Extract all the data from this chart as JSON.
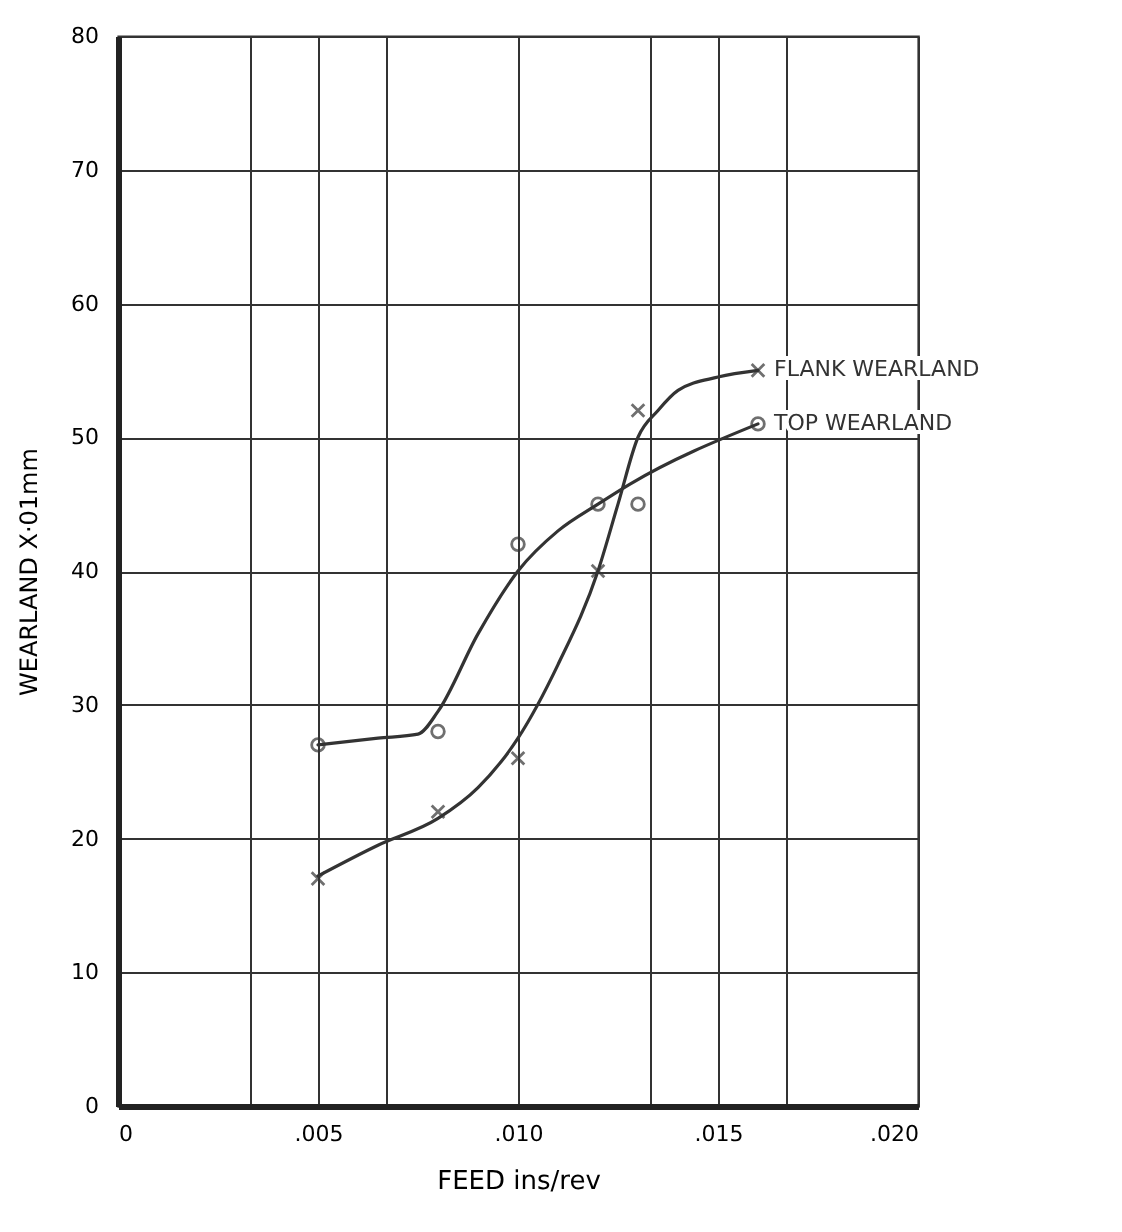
{
  "chart_data": {
    "type": "line",
    "xlabel": "FEED ins/rev",
    "ylabel": "WEARLAND X·01mm",
    "xlim": [
      0,
      0.02
    ],
    "ylim": [
      0,
      80
    ],
    "xticks": [
      0,
      {
        "value": 0.0033,
        "label": null
      },
      {
        "value": 0.005,
        "label": ".005"
      },
      {
        "value": 0.0067,
        "label": null
      },
      {
        "value": 0.01,
        "label": ".010"
      },
      {
        "value": 0.0133,
        "label": null
      },
      {
        "value": 0.015,
        "label": ".015"
      },
      {
        "value": 0.0167,
        "label": null
      },
      {
        "value": 0.02,
        "label": ".020"
      }
    ],
    "yticks": [
      0,
      10,
      20,
      30,
      40,
      50,
      60,
      70,
      80
    ],
    "grid": true,
    "series": [
      {
        "name": "FLANK WEARLAND",
        "marker": "none",
        "color": "#333333",
        "x": [
          0.005,
          0.0065,
          0.008,
          0.009,
          0.01,
          0.011,
          0.012,
          0.0125,
          0.013,
          0.0135,
          0.014,
          0.015,
          0.016
        ],
        "values": [
          17.2,
          19.5,
          21.5,
          23.8,
          27.5,
          33,
          40,
          45,
          50,
          52,
          53.5,
          54.5,
          55
        ]
      },
      {
        "name": "TOP WEARLAND",
        "marker": "none",
        "color": "#333333",
        "x": [
          0.005,
          0.0065,
          0.0075,
          0.008,
          0.009,
          0.01,
          0.011,
          0.012,
          0.0128,
          0.016
        ],
        "values": [
          27,
          27.5,
          27.8,
          29.5,
          35.3,
          40,
          43,
          45,
          46.5,
          51
        ]
      },
      {
        "type": "scatter",
        "marker": "cross",
        "color": "#333333",
        "x": [
          0.005,
          0.008,
          0.01,
          0.012,
          0.013,
          0.016
        ],
        "values": [
          17,
          22,
          26,
          40,
          52,
          55
        ]
      },
      {
        "type": "scatter",
        "marker": "circle",
        "color": "#333333",
        "x": [
          0.005,
          0.008,
          0.01,
          0.012,
          0.013,
          0.016
        ],
        "values": [
          27,
          28,
          42,
          45,
          45,
          51
        ]
      }
    ]
  }
}
